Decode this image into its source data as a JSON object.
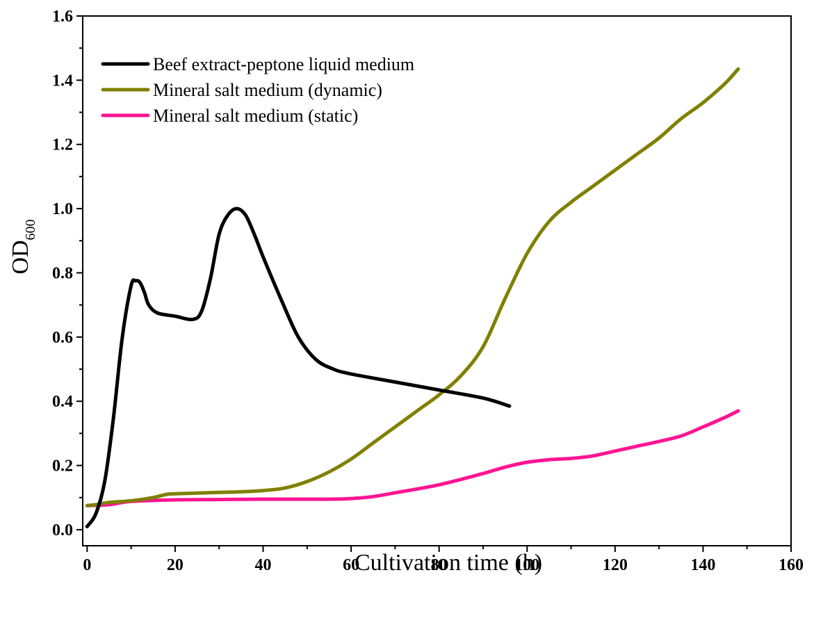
{
  "chart_data": {
    "type": "line",
    "title": "",
    "xlabel": "Cultivation time (h)",
    "ylabel": {
      "main": "OD",
      "subscript": "600"
    },
    "xlim": [
      -1,
      160
    ],
    "ylim": [
      -0.05,
      1.6
    ],
    "xticks": [
      0,
      20,
      40,
      60,
      80,
      100,
      120,
      140,
      160
    ],
    "xtick_labels": [
      "0",
      "20",
      "40",
      "60",
      "80",
      "100",
      "120",
      "140",
      "160"
    ],
    "yticks": [
      0.0,
      0.2,
      0.4,
      0.6,
      0.8,
      1.0,
      1.2,
      1.4,
      1.6
    ],
    "ytick_labels": [
      "0.0",
      "0.2",
      "0.4",
      "0.6",
      "0.8",
      "1.0",
      "1.2",
      "1.4",
      "1.6"
    ],
    "grid": false,
    "legend_position": "top-left",
    "series": [
      {
        "name": "Beef extract-peptone liquid medium",
        "color": "#000000",
        "x": [
          0,
          2,
          4,
          6,
          8,
          10,
          11,
          12,
          13,
          14,
          16,
          20,
          24,
          26,
          28,
          30,
          32,
          34,
          36,
          38,
          40,
          44,
          48,
          52,
          56,
          60,
          70,
          80,
          90,
          96
        ],
        "y": [
          0.01,
          0.05,
          0.15,
          0.35,
          0.6,
          0.76,
          0.775,
          0.77,
          0.74,
          0.7,
          0.675,
          0.665,
          0.655,
          0.68,
          0.78,
          0.92,
          0.98,
          1.0,
          0.98,
          0.92,
          0.85,
          0.72,
          0.6,
          0.53,
          0.5,
          0.485,
          0.46,
          0.435,
          0.41,
          0.385
        ]
      },
      {
        "name": "Mineral salt medium (dynamic)",
        "color": "#808000",
        "x": [
          0,
          2,
          5,
          10,
          15,
          18,
          20,
          25,
          30,
          35,
          40,
          45,
          50,
          55,
          60,
          65,
          70,
          75,
          80,
          85,
          90,
          95,
          100,
          105,
          110,
          115,
          120,
          125,
          130,
          135,
          140,
          145,
          148
        ],
        "y": [
          0.075,
          0.078,
          0.085,
          0.09,
          0.1,
          0.11,
          0.112,
          0.114,
          0.116,
          0.118,
          0.122,
          0.13,
          0.15,
          0.18,
          0.22,
          0.27,
          0.32,
          0.37,
          0.42,
          0.48,
          0.57,
          0.72,
          0.86,
          0.96,
          1.02,
          1.07,
          1.12,
          1.17,
          1.22,
          1.28,
          1.33,
          1.39,
          1.435
        ]
      },
      {
        "name": "Mineral salt medium (static)",
        "color": "#ff1493",
        "x": [
          0,
          5,
          10,
          20,
          30,
          40,
          50,
          55,
          60,
          65,
          70,
          80,
          90,
          95,
          100,
          105,
          110,
          115,
          120,
          125,
          130,
          135,
          140,
          145,
          148
        ],
        "y": [
          0.075,
          0.078,
          0.088,
          0.093,
          0.094,
          0.095,
          0.095,
          0.095,
          0.097,
          0.103,
          0.115,
          0.14,
          0.175,
          0.195,
          0.21,
          0.218,
          0.222,
          0.23,
          0.245,
          0.26,
          0.275,
          0.292,
          0.32,
          0.35,
          0.37
        ]
      }
    ]
  }
}
